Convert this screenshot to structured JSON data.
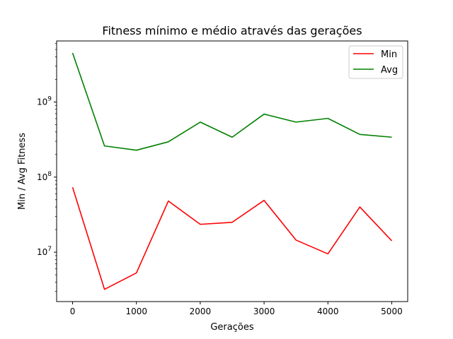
{
  "chart_data": {
    "type": "line",
    "title": "Fitness mínimo e médio através das gerações",
    "xlabel": "Gerações",
    "ylabel": "Min / Avg Fitness",
    "yscale": "log",
    "xlim": [
      -250,
      5250
    ],
    "ylim": [
      2200000.0,
      6500000000.0
    ],
    "x_ticks": [
      0,
      1000,
      2000,
      3000,
      4000,
      5000
    ],
    "x_tick_labels": [
      "0",
      "1000",
      "2000",
      "3000",
      "4000",
      "5000"
    ],
    "y_ticks": [
      {
        "value": 10000000.0,
        "base": "10",
        "exp": "7"
      },
      {
        "value": 100000000.0,
        "base": "10",
        "exp": "8"
      },
      {
        "value": 1000000000.0,
        "base": "10",
        "exp": "9"
      }
    ],
    "x": [
      0,
      500,
      1000,
      1500,
      2000,
      2500,
      3000,
      3500,
      4000,
      4500,
      5000
    ],
    "series": [
      {
        "name": "Min",
        "color": "#ff0000",
        "values": [
          73000000.0,
          3200000.0,
          5300000.0,
          48000000.0,
          23500000.0,
          25000000.0,
          49000000.0,
          14500000.0,
          9500000.0,
          40000000.0,
          14200000.0
        ]
      },
      {
        "name": "Avg",
        "color": "#008000",
        "values": [
          4500000000.0,
          260000000.0,
          228000000.0,
          295000000.0,
          540000000.0,
          340000000.0,
          690000000.0,
          540000000.0,
          605000000.0,
          370000000.0,
          340000000.0
        ]
      }
    ],
    "legend_position": "top-right",
    "grid": false
  }
}
